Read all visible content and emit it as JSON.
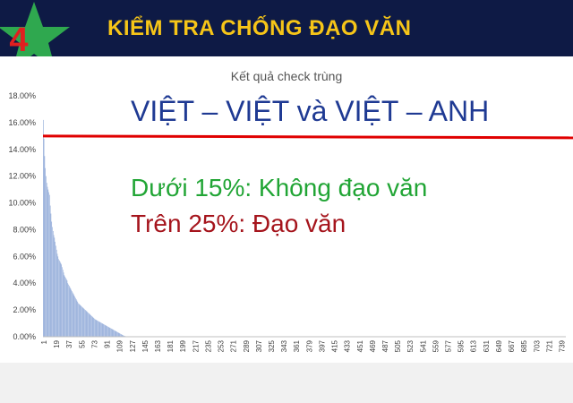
{
  "slide": {
    "number": "4",
    "title": "KIỂM TRA CHỐNG ĐẠO VĂN",
    "subtitle": "VIỆT – VIỆT và VIỆT – ANH",
    "note_green": "Dưới 15%: Không đạo văn",
    "note_red": "Trên 25%: Đạo văn"
  },
  "colors": {
    "header_bg": "#0e1a45",
    "title": "#f6c518",
    "star": "#2fa84f",
    "number": "#e02020",
    "bars": "#8fa9d8",
    "threshold_line": "#e00000",
    "subtitle": "#1f3a93",
    "green_text": "#21a535",
    "red_text": "#a5141c"
  },
  "chart_data": {
    "type": "bar",
    "title": "Kết quả check trùng",
    "y_tick_labels": [
      "0.00%",
      "2.00%",
      "4.00%",
      "6.00%",
      "8.00%",
      "10.00%",
      "12.00%",
      "14.00%",
      "16.00%",
      "18.00%"
    ],
    "ylim": [
      0,
      18
    ],
    "x_tick_labels": [
      "1",
      "19",
      "37",
      "55",
      "73",
      "91",
      "109",
      "127",
      "145",
      "163",
      "181",
      "199",
      "217",
      "235",
      "253",
      "271",
      "289",
      "307",
      "325",
      "343",
      "361",
      "379",
      "397",
      "415",
      "433",
      "451",
      "469",
      "487",
      "505",
      "523",
      "541",
      "559",
      "577",
      "595",
      "613",
      "631",
      "649",
      "667",
      "685",
      "703",
      "721",
      "739"
    ],
    "n_items": 745,
    "threshold": 15,
    "values": [
      16.2,
      14.8,
      13.5,
      12.6,
      12.0,
      11.5,
      11.2,
      11.0,
      10.8,
      10.6,
      9.8,
      9.2,
      8.6,
      8.2,
      7.9,
      7.6,
      7.4,
      7.1,
      6.8,
      6.5,
      6.2,
      6.0,
      5.8,
      5.7,
      5.6,
      5.5,
      5.4,
      5.2,
      5.0,
      4.8,
      4.6,
      4.5,
      4.4,
      4.3,
      4.2,
      4.0,
      3.9,
      3.8,
      3.7,
      3.6,
      3.5,
      3.4,
      3.3,
      3.2,
      3.1,
      3.0,
      2.9,
      2.8,
      2.7,
      2.6,
      2.5,
      2.45,
      2.4,
      2.35,
      2.3,
      2.25,
      2.2,
      2.15,
      2.1,
      2.05,
      2.0,
      1.95,
      1.9,
      1.85,
      1.8,
      1.75,
      1.7,
      1.65,
      1.6,
      1.55,
      1.5,
      1.45,
      1.4,
      1.35,
      1.3,
      1.27,
      1.24,
      1.21,
      1.18,
      1.15,
      1.12,
      1.09,
      1.06,
      1.03,
      1.0,
      0.97,
      0.94,
      0.91,
      0.88,
      0.85,
      0.82,
      0.79,
      0.76,
      0.73,
      0.7,
      0.67,
      0.64,
      0.61,
      0.58,
      0.55,
      0.52,
      0.49,
      0.46,
      0.43,
      0.4,
      0.37,
      0.34,
      0.31,
      0.28,
      0.25,
      0.22,
      0.19,
      0.16,
      0.13,
      0.1,
      0.08,
      0.06,
      0.04,
      0.02
    ]
  }
}
